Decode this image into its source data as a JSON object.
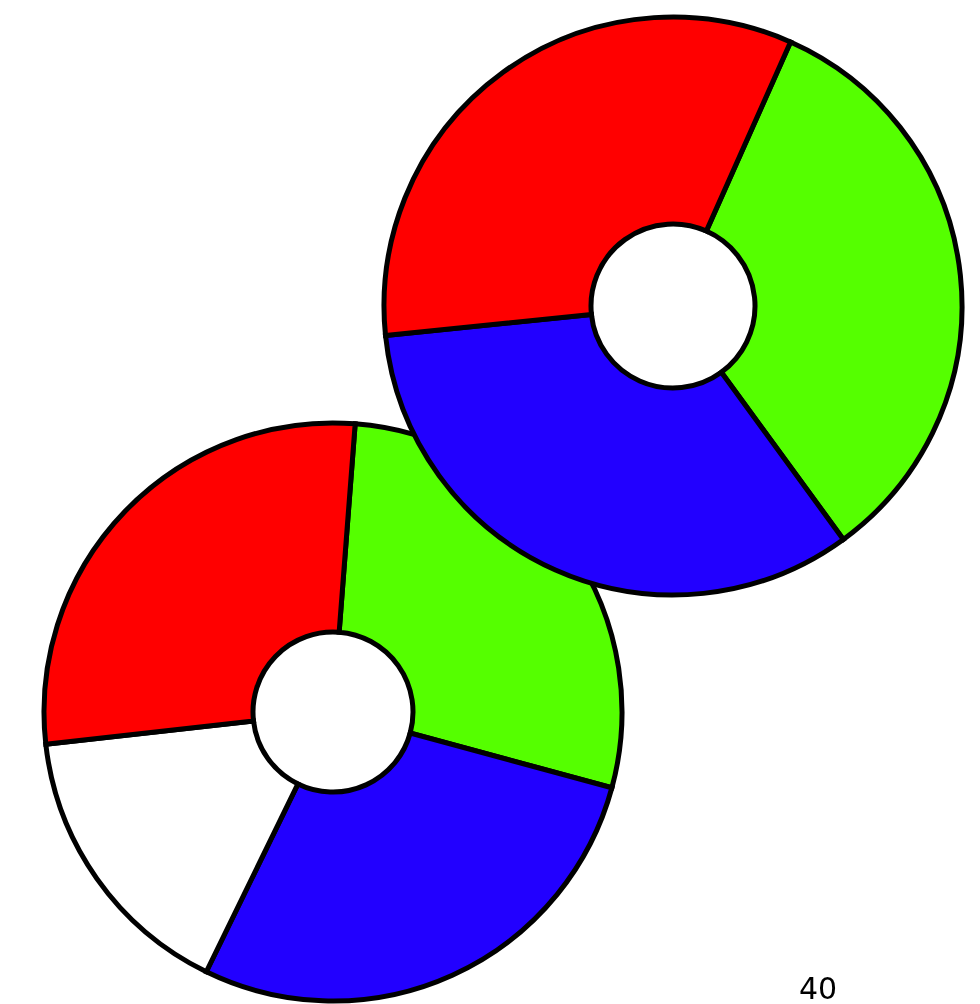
{
  "chart_data": [
    {
      "type": "donut",
      "categories": [
        null,
        null,
        null
      ],
      "values": [
        33.3,
        33.4,
        33.3
      ],
      "colors": [
        "#55ff00",
        "#2200ff",
        "#ff0000"
      ]
    },
    {
      "type": "donut",
      "categories": [
        null,
        null,
        null,
        null
      ],
      "values": [
        28,
        28,
        16,
        28
      ],
      "colors": [
        "#55ff00",
        "#2200ff",
        "#ffffff",
        "#ff0000"
      ],
      "annotations": [
        "40"
      ]
    }
  ]
}
